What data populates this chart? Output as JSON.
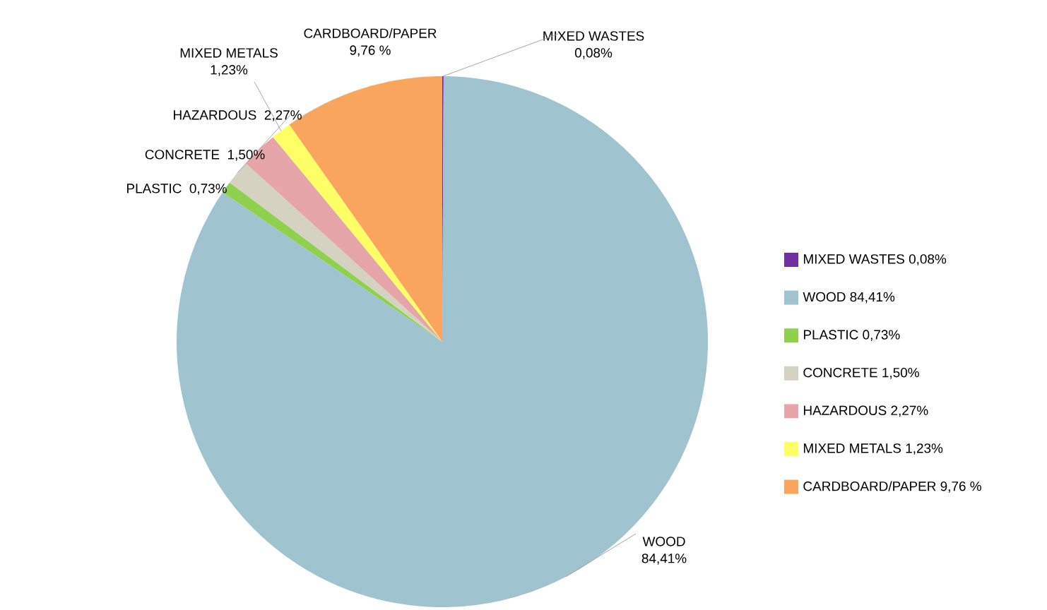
{
  "chart_data": {
    "type": "pie",
    "categories": [
      "MIXED WASTES",
      "WOOD",
      "PLASTIC",
      "CONCRETE",
      "HAZARDOUS",
      "MIXED METALS",
      "CARDBOARD/PAPER"
    ],
    "values": [
      0.08,
      84.41,
      0.73,
      1.5,
      2.27,
      1.23,
      9.76
    ],
    "value_labels": [
      "0,08%",
      "84,41%",
      "0,73%",
      "1,50%",
      "2,27%",
      "1,23%",
      "9,76 %"
    ],
    "colors": [
      "#7030a0",
      "#9fc3cf",
      "#8fd14f",
      "#d6d2c2",
      "#e6a5a8",
      "#ffff66",
      "#f9a55d"
    ],
    "legend": "right"
  }
}
